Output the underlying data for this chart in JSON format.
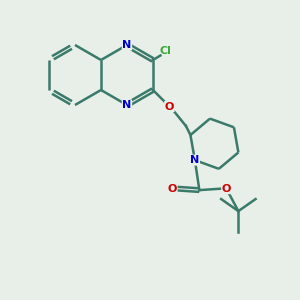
{
  "background_color": "#e8eee8",
  "bond_color": "#3a7a6a",
  "n_color": "#0000cc",
  "o_color": "#cc0000",
  "cl_color": "#3aaa3a",
  "bond_width": 1.8,
  "dbo": 0.06,
  "figsize": [
    3.0,
    3.0
  ],
  "dpi": 100,
  "xlim": [
    0,
    10
  ],
  "ylim": [
    0,
    10
  ]
}
